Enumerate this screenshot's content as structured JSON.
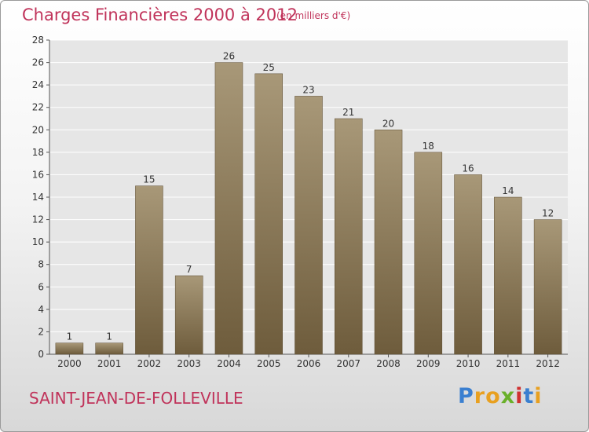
{
  "header": {
    "title": "Charges Financières 2000 à 2012",
    "subtitle": "(en milliers d'€)"
  },
  "footer": {
    "commune": "SAINT-JEAN-DE-FOLLEVILLE"
  },
  "logo": {
    "letters": [
      {
        "char": "P",
        "color": "#3a7fd0"
      },
      {
        "char": "r",
        "color": "#e8a020"
      },
      {
        "char": "o",
        "color": "#e8a020"
      },
      {
        "char": "x",
        "color": "#6ab02a"
      },
      {
        "char": "i",
        "color": "#d03030"
      },
      {
        "char": "t",
        "color": "#3a7fd0"
      },
      {
        "char": "i",
        "color": "#e8a020"
      }
    ]
  },
  "colors": {
    "bar_top": "#a89878",
    "bar_bottom": "#6e5c3c",
    "title": "#c0335a",
    "grid": "#ffffff",
    "plot_bg": "#e6e6e6"
  },
  "chart_data": {
    "type": "bar",
    "title": "Charges Financières 2000 à 2012",
    "subtitle": "(en milliers d'€)",
    "categories": [
      "2000",
      "2001",
      "2002",
      "2003",
      "2004",
      "2005",
      "2006",
      "2007",
      "2008",
      "2009",
      "2010",
      "2011",
      "2012"
    ],
    "values": [
      1,
      1,
      15,
      7,
      26,
      25,
      23,
      21,
      20,
      18,
      16,
      14,
      12
    ],
    "ylim": [
      0,
      28
    ],
    "yticks": [
      0,
      2,
      4,
      6,
      8,
      10,
      12,
      14,
      16,
      18,
      20,
      22,
      24,
      26,
      28
    ],
    "grid": true,
    "data_labels": true
  }
}
